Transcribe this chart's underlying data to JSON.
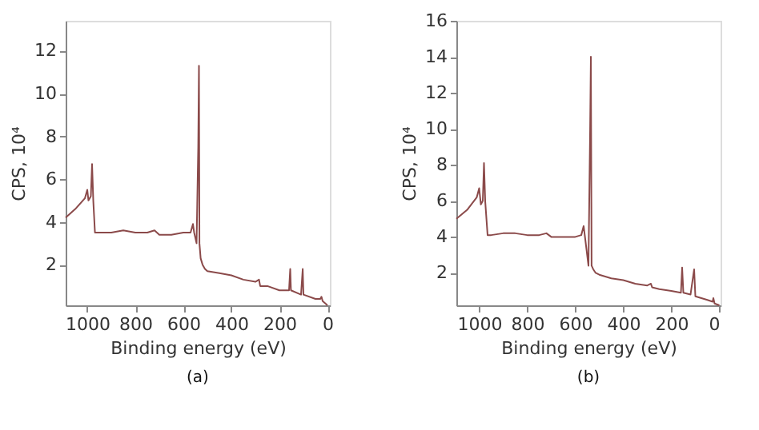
{
  "chart_data": [
    {
      "type": "line",
      "xlabel": "Binding energy (eV)",
      "ylabel": "CPS, 10⁴",
      "annotations": [
        "(a)"
      ],
      "xlim": [
        1090,
        -10
      ],
      "ylim": [
        0.1,
        13.4
      ],
      "xticks": [
        1000,
        800,
        600,
        400,
        200,
        0
      ],
      "yticks": [
        2,
        4,
        6,
        8,
        10,
        12
      ],
      "grid": false,
      "marker": "none",
      "line_style": "solid",
      "x": [
        1090,
        1050,
        1010,
        1000,
        995,
        985,
        980,
        975,
        968,
        950,
        900,
        850,
        800,
        750,
        720,
        700,
        650,
        600,
        570,
        560,
        555,
        545,
        538,
        535,
        533,
        528,
        520,
        510,
        500,
        450,
        400,
        350,
        300,
        285,
        280,
        250,
        200,
        160,
        155,
        152,
        110,
        103,
        100,
        50,
        30,
        25,
        20,
        0
      ],
      "series": [
        {
          "color": "#8b4a4a",
          "values": [
            4.2,
            4.6,
            5.1,
            5.5,
            5.0,
            5.2,
            6.7,
            5.0,
            3.5,
            3.5,
            3.5,
            3.6,
            3.5,
            3.5,
            3.6,
            3.4,
            3.4,
            3.5,
            3.5,
            3.9,
            3.5,
            3.0,
            7.5,
            11.3,
            3.0,
            2.3,
            2.0,
            1.8,
            1.7,
            1.6,
            1.5,
            1.3,
            1.2,
            1.3,
            1.0,
            1.0,
            0.8,
            0.8,
            1.8,
            0.8,
            0.6,
            1.8,
            0.6,
            0.4,
            0.4,
            0.5,
            0.3,
            0.1
          ]
        }
      ]
    },
    {
      "type": "line",
      "xlabel": "Binding energy (eV)",
      "ylabel": "CPS, 10⁴",
      "annotations": [
        "(b)"
      ],
      "xlim": [
        1095,
        -5
      ],
      "ylim": [
        0.2,
        16
      ],
      "xticks": [
        1000,
        800,
        600,
        400,
        200,
        0
      ],
      "yticks": [
        2,
        4,
        6,
        8,
        10,
        12,
        14,
        16
      ],
      "grid": false,
      "marker": "none",
      "line_style": "solid",
      "x": [
        1095,
        1050,
        1010,
        1000,
        993,
        985,
        980,
        975,
        965,
        950,
        900,
        850,
        800,
        750,
        720,
        700,
        650,
        600,
        575,
        565,
        555,
        545,
        538,
        535,
        532,
        525,
        515,
        500,
        450,
        400,
        350,
        300,
        285,
        280,
        250,
        200,
        160,
        155,
        150,
        120,
        105,
        100,
        50,
        28,
        25,
        20,
        0
      ],
      "series": [
        {
          "color": "#8b4a4a",
          "values": [
            5.0,
            5.5,
            6.2,
            6.7,
            5.8,
            6.0,
            8.1,
            6.0,
            4.1,
            4.1,
            4.2,
            4.2,
            4.1,
            4.1,
            4.2,
            4.0,
            4.0,
            4.0,
            4.1,
            4.6,
            3.5,
            2.4,
            10.0,
            14.0,
            2.4,
            2.2,
            2.0,
            1.9,
            1.7,
            1.6,
            1.4,
            1.3,
            1.4,
            1.2,
            1.1,
            1.0,
            0.9,
            2.3,
            0.9,
            0.8,
            2.2,
            0.7,
            0.5,
            0.4,
            0.6,
            0.3,
            0.2
          ]
        }
      ]
    }
  ]
}
